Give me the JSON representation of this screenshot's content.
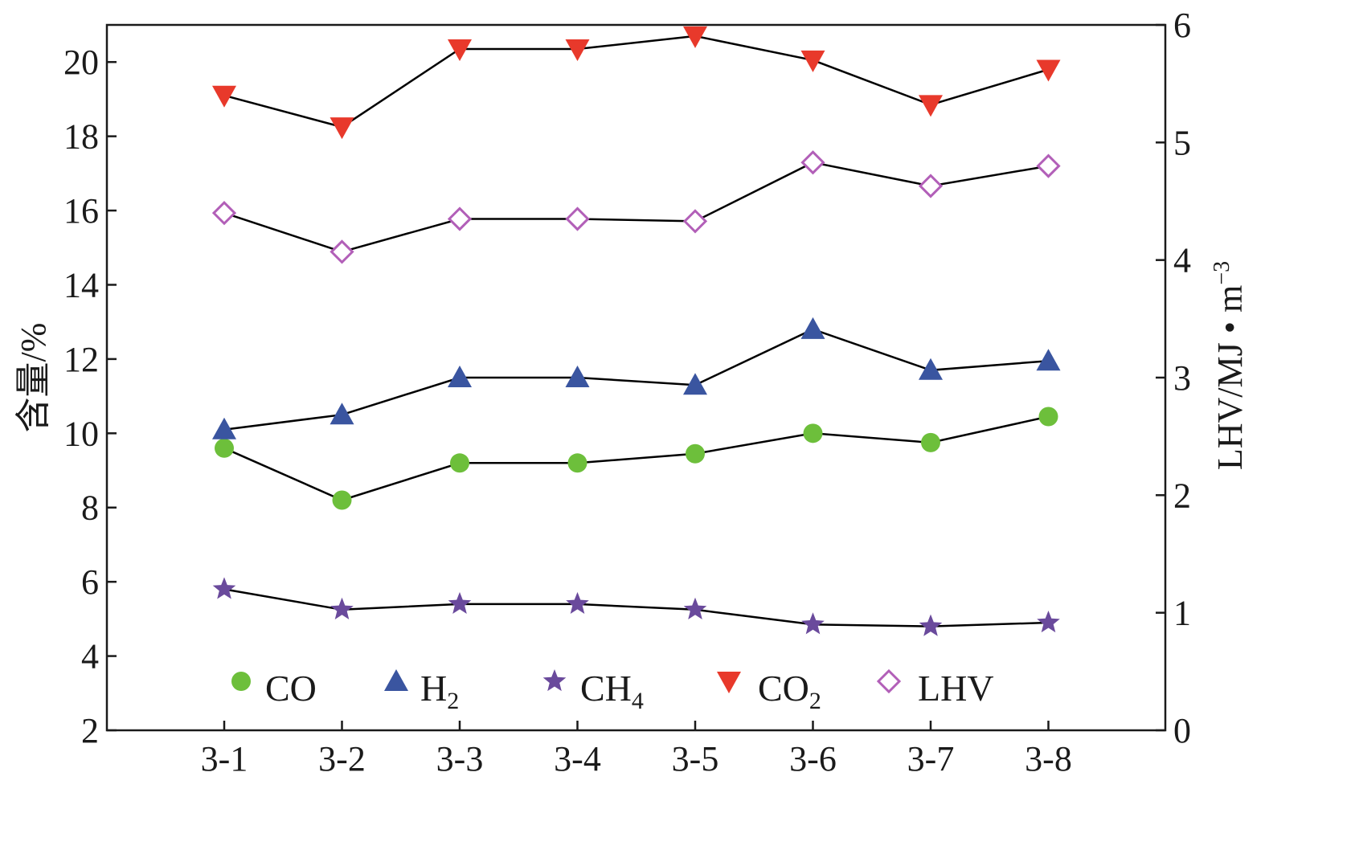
{
  "chart_data": {
    "type": "line",
    "categories": [
      "3-1",
      "3-2",
      "3-3",
      "3-4",
      "3-5",
      "3-6",
      "3-7",
      "3-8"
    ],
    "y_left": {
      "label": "含量/%",
      "ylim": [
        2,
        21
      ],
      "ticks": [
        2,
        4,
        6,
        8,
        10,
        12,
        14,
        16,
        18,
        20
      ]
    },
    "y_right": {
      "label_base": "LHV/MJ • m",
      "label_sup": "−3",
      "ylim": [
        0,
        6
      ],
      "ticks": [
        0,
        1,
        2,
        3,
        4,
        5,
        6
      ]
    },
    "series": [
      {
        "key": "co",
        "name": "CO",
        "name_base": "CO",
        "name_sub": "",
        "axis": "left",
        "marker": "circle",
        "color": "#6dbf3b",
        "values": [
          9.6,
          8.2,
          9.2,
          9.2,
          9.45,
          10.0,
          9.75,
          10.45
        ]
      },
      {
        "key": "h2",
        "name": "H2",
        "name_base": "H",
        "name_sub": "2",
        "axis": "left",
        "marker": "triangle-up",
        "color": "#3a55a0",
        "values": [
          10.1,
          10.5,
          11.5,
          11.5,
          11.3,
          12.8,
          11.7,
          11.95
        ]
      },
      {
        "key": "ch4",
        "name": "CH4",
        "name_base": "CH",
        "name_sub": "4",
        "axis": "left",
        "marker": "star",
        "color": "#6a4a9c",
        "values": [
          5.8,
          5.25,
          5.4,
          5.4,
          5.25,
          4.85,
          4.8,
          4.9
        ]
      },
      {
        "key": "co2",
        "name": "CO2",
        "name_base": "CO",
        "name_sub": "2",
        "axis": "left",
        "marker": "triangle-down",
        "color": "#e8392b",
        "values": [
          19.1,
          18.25,
          20.35,
          20.35,
          20.7,
          20.05,
          18.85,
          19.8
        ]
      },
      {
        "key": "lhv",
        "name": "LHV",
        "name_base": "LHV",
        "name_sub": "",
        "axis": "right",
        "marker": "diamond-open",
        "color": "#b25fb8",
        "values": [
          4.4,
          4.07,
          4.35,
          4.35,
          4.33,
          4.83,
          4.63,
          4.8
        ]
      }
    ],
    "legend": {
      "placement": "bottom-inside",
      "order": [
        "co",
        "h2",
        "ch4",
        "co2",
        "lhv"
      ]
    },
    "grid": false,
    "line_color": "#000000"
  }
}
